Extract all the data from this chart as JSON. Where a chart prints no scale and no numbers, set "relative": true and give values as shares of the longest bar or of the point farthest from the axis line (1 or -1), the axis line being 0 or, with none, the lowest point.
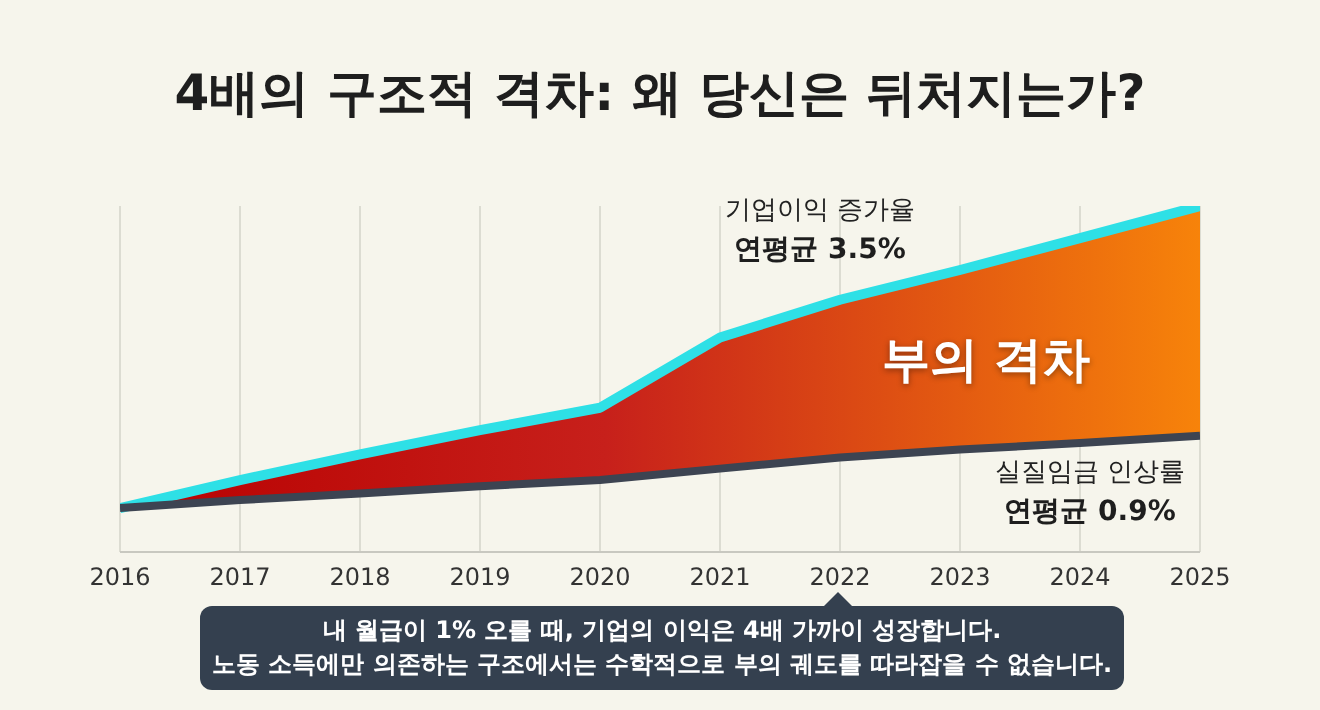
{
  "chart_data": {
    "type": "line",
    "title": "4배의 구조적 격차: 왜 당신은 뒤처지는가?",
    "relative": true,
    "x": [
      2016,
      2017,
      2018,
      2019,
      2020,
      2021,
      2022,
      2023,
      2024,
      2025
    ],
    "xlim": [
      2016,
      2025
    ],
    "xticks": [
      2016,
      2017,
      2018,
      2019,
      2020,
      2021,
      2022,
      2023,
      2024,
      2025
    ],
    "grid": "x",
    "marker": "none",
    "line_style": "solid",
    "series": [
      {
        "name": "기업이익 증가율",
        "color": "#2ee0e6",
        "type": "area",
        "values": [
          0.127,
          0.208,
          0.282,
          0.352,
          0.417,
          0.62,
          0.729,
          0.815,
          0.907,
          1
        ]
      },
      {
        "name": "실질임금 인상률",
        "color": "#3d4452",
        "values": [
          0.127,
          0.15,
          0.169,
          0.19,
          0.208,
          0.241,
          0.273,
          0.296,
          0.315,
          0.336
        ]
      }
    ],
    "annotations": [
      "연평균 3.5%",
      "연평균 0.9%",
      "부의 격차",
      "내 월급이 1% 오를 때, 기업의 이익은 4배 가까이 성장합니다.\n노동 소득에만 의존하는 구조에서는 수학적으로 부의 궤도를 따라잡을 수 없습니다."
    ]
  }
}
